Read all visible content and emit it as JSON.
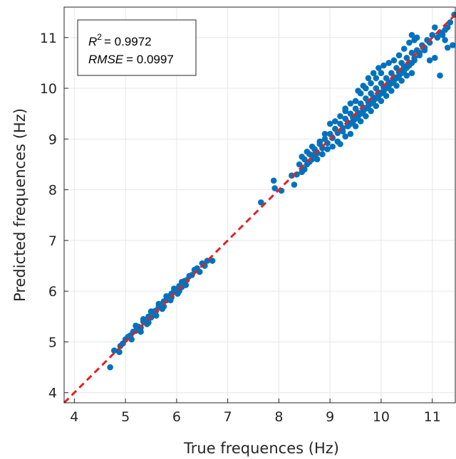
{
  "chart_data": {
    "type": "scatter",
    "xlabel": "True frequences (Hz)",
    "ylabel": "Predicted frequences (Hz)",
    "xlim": [
      3.8,
      11.45
    ],
    "ylim": [
      3.8,
      11.6
    ],
    "xticks": [
      4,
      5,
      6,
      7,
      8,
      9,
      10,
      11
    ],
    "yticks": [
      4,
      5,
      6,
      7,
      8,
      9,
      10,
      11
    ],
    "grid": true,
    "colors": {
      "points": "#0072BD",
      "reference_line": "#E32222",
      "grid": "#e6e6e6",
      "axis": "#262626"
    },
    "annotation": {
      "r2_symbol": "R",
      "r2_superscript": "2",
      "r2_value": "= 0.9972",
      "rmse_symbol": "RMSE",
      "rmse_value": "= 0.0997",
      "placement": "top-left"
    },
    "reference_line": {
      "x": [
        3.8,
        11.45
      ],
      "y": [
        3.8,
        11.45
      ],
      "style": "dashed"
    },
    "series": [
      {
        "points": [
          [
            4.7,
            4.5
          ],
          [
            4.78,
            4.83
          ],
          [
            4.88,
            4.8
          ],
          [
            4.9,
            4.92
          ],
          [
            4.95,
            4.97
          ],
          [
            5.0,
            5.05
          ],
          [
            5.05,
            5.1
          ],
          [
            5.1,
            5.13
          ],
          [
            5.15,
            5.2
          ],
          [
            5.2,
            5.22
          ],
          [
            5.25,
            5.3
          ],
          [
            5.3,
            5.28
          ],
          [
            5.35,
            5.4
          ],
          [
            5.4,
            5.42
          ],
          [
            5.45,
            5.5
          ],
          [
            5.5,
            5.48
          ],
          [
            5.55,
            5.6
          ],
          [
            5.6,
            5.62
          ],
          [
            5.65,
            5.7
          ],
          [
            5.7,
            5.68
          ],
          [
            5.75,
            5.8
          ],
          [
            5.8,
            5.82
          ],
          [
            5.85,
            5.9
          ],
          [
            5.9,
            5.88
          ],
          [
            5.95,
            6.0
          ],
          [
            6.0,
            6.02
          ],
          [
            6.05,
            6.1
          ],
          [
            6.1,
            6.08
          ],
          [
            6.15,
            6.2
          ],
          [
            6.2,
            6.22
          ],
          [
            6.3,
            6.32
          ],
          [
            6.4,
            6.45
          ],
          [
            6.5,
            6.55
          ],
          [
            6.6,
            6.6
          ],
          [
            6.7,
            6.6
          ],
          [
            6.55,
            6.5
          ],
          [
            6.45,
            6.38
          ],
          [
            6.35,
            6.42
          ],
          [
            6.25,
            6.3
          ],
          [
            5.3,
            5.2
          ],
          [
            5.45,
            5.38
          ],
          [
            5.6,
            5.52
          ],
          [
            5.75,
            5.7
          ],
          [
            5.9,
            5.95
          ],
          [
            6.05,
            6.0
          ],
          [
            5.2,
            5.32
          ],
          [
            5.35,
            5.45
          ],
          [
            5.5,
            5.6
          ],
          [
            5.65,
            5.75
          ],
          [
            5.8,
            5.9
          ],
          [
            5.95,
            6.05
          ],
          [
            6.1,
            6.18
          ],
          [
            5.12,
            5.05
          ],
          [
            5.28,
            5.25
          ],
          [
            5.42,
            5.35
          ],
          [
            5.58,
            5.55
          ],
          [
            5.72,
            5.65
          ],
          [
            5.88,
            5.82
          ],
          [
            6.02,
            5.95
          ],
          [
            6.18,
            6.12
          ],
          [
            7.65,
            7.75
          ],
          [
            7.9,
            8.18
          ],
          [
            7.92,
            8.03
          ],
          [
            8.05,
            7.98
          ],
          [
            8.25,
            8.28
          ],
          [
            8.3,
            8.1
          ],
          [
            8.35,
            8.3
          ],
          [
            8.4,
            8.5
          ],
          [
            8.45,
            8.35
          ],
          [
            8.5,
            8.6
          ],
          [
            8.55,
            8.5
          ],
          [
            8.6,
            8.7
          ],
          [
            8.65,
            8.6
          ],
          [
            8.7,
            8.8
          ],
          [
            8.75,
            8.72
          ],
          [
            8.8,
            8.9
          ],
          [
            8.85,
            8.82
          ],
          [
            8.9,
            9.0
          ],
          [
            8.95,
            8.92
          ],
          [
            9.0,
            9.1
          ],
          [
            9.05,
            9.02
          ],
          [
            9.1,
            9.2
          ],
          [
            9.15,
            9.12
          ],
          [
            9.2,
            9.3
          ],
          [
            9.25,
            9.22
          ],
          [
            9.3,
            9.4
          ],
          [
            9.35,
            9.32
          ],
          [
            9.4,
            9.5
          ],
          [
            9.45,
            9.42
          ],
          [
            9.5,
            9.6
          ],
          [
            9.55,
            9.52
          ],
          [
            9.6,
            9.7
          ],
          [
            9.65,
            9.62
          ],
          [
            9.7,
            9.8
          ],
          [
            9.75,
            9.72
          ],
          [
            9.8,
            9.9
          ],
          [
            9.85,
            9.82
          ],
          [
            9.9,
            10.0
          ],
          [
            9.95,
            9.92
          ],
          [
            10.0,
            10.1
          ],
          [
            10.05,
            10.02
          ],
          [
            10.1,
            10.2
          ],
          [
            10.15,
            10.12
          ],
          [
            10.2,
            10.3
          ],
          [
            10.25,
            10.22
          ],
          [
            10.3,
            10.4
          ],
          [
            10.35,
            10.32
          ],
          [
            10.4,
            10.5
          ],
          [
            10.45,
            10.42
          ],
          [
            10.5,
            10.6
          ],
          [
            10.55,
            10.5
          ],
          [
            10.6,
            10.7
          ],
          [
            10.65,
            10.6
          ],
          [
            10.7,
            10.75
          ],
          [
            10.75,
            10.7
          ],
          [
            10.8,
            10.85
          ],
          [
            10.85,
            10.8
          ],
          [
            10.9,
            10.95
          ],
          [
            10.95,
            10.9
          ],
          [
            11.0,
            11.05
          ],
          [
            11.05,
            11.2
          ],
          [
            11.1,
            11.0
          ],
          [
            11.15,
            11.1
          ],
          [
            11.2,
            11.05
          ],
          [
            11.25,
            11.15
          ],
          [
            11.3,
            11.2
          ],
          [
            11.35,
            11.3
          ],
          [
            11.43,
            11.45
          ],
          [
            9.3,
            9.6
          ],
          [
            9.4,
            9.7
          ],
          [
            9.5,
            9.75
          ],
          [
            9.6,
            9.9
          ],
          [
            9.7,
            10.0
          ],
          [
            9.8,
            10.1
          ],
          [
            9.9,
            10.2
          ],
          [
            10.0,
            10.3
          ],
          [
            9.2,
            8.9
          ],
          [
            9.3,
            9.05
          ],
          [
            9.4,
            9.1
          ],
          [
            9.5,
            9.25
          ],
          [
            9.6,
            9.35
          ],
          [
            9.7,
            9.45
          ],
          [
            9.8,
            9.55
          ],
          [
            9.9,
            9.65
          ],
          [
            10.0,
            9.75
          ],
          [
            10.1,
            9.85
          ],
          [
            10.2,
            9.95
          ],
          [
            10.3,
            10.05
          ],
          [
            10.4,
            10.15
          ],
          [
            10.5,
            10.25
          ],
          [
            10.6,
            10.3
          ],
          [
            10.6,
            11.05
          ],
          [
            10.65,
            10.95
          ],
          [
            10.7,
            11.0
          ],
          [
            10.55,
            10.9
          ],
          [
            10.45,
            10.78
          ],
          [
            10.35,
            10.65
          ],
          [
            10.25,
            10.55
          ],
          [
            11.15,
            10.25
          ],
          [
            10.95,
            10.55
          ],
          [
            11.05,
            10.6
          ],
          [
            11.3,
            10.8
          ],
          [
            11.25,
            10.95
          ],
          [
            11.4,
            10.85
          ],
          [
            9.0,
            9.3
          ],
          [
            8.9,
            9.1
          ],
          [
            8.8,
            8.95
          ],
          [
            8.7,
            8.7
          ],
          [
            8.6,
            8.55
          ],
          [
            8.5,
            8.4
          ],
          [
            8.45,
            8.65
          ],
          [
            8.55,
            8.75
          ],
          [
            8.65,
            8.85
          ],
          [
            8.75,
            8.6
          ],
          [
            8.85,
            8.7
          ],
          [
            8.95,
            8.8
          ],
          [
            9.05,
            8.85
          ],
          [
            9.15,
            8.95
          ],
          [
            9.25,
            9.15
          ],
          [
            9.35,
            9.25
          ],
          [
            9.45,
            9.35
          ],
          [
            9.55,
            9.45
          ],
          [
            9.65,
            9.55
          ],
          [
            9.75,
            9.65
          ],
          [
            9.85,
            9.75
          ],
          [
            9.95,
            9.85
          ],
          [
            10.05,
            9.95
          ],
          [
            10.15,
            10.05
          ],
          [
            10.25,
            10.15
          ],
          [
            10.35,
            10.25
          ],
          [
            10.45,
            10.35
          ],
          [
            10.55,
            10.45
          ],
          [
            10.65,
            10.55
          ],
          [
            10.75,
            10.65
          ],
          [
            10.85,
            10.75
          ],
          [
            9.1,
            9.35
          ],
          [
            9.2,
            9.45
          ],
          [
            9.3,
            9.55
          ],
          [
            9.4,
            9.3
          ],
          [
            9.5,
            9.4
          ],
          [
            9.6,
            9.5
          ],
          [
            9.7,
            9.6
          ],
          [
            9.8,
            9.7
          ],
          [
            9.9,
            9.8
          ],
          [
            10.0,
            9.9
          ],
          [
            10.1,
            10.0
          ],
          [
            10.2,
            10.1
          ],
          [
            10.3,
            10.2
          ],
          [
            10.4,
            10.3
          ],
          [
            10.5,
            10.4
          ],
          [
            10.6,
            10.5
          ],
          [
            9.75,
            10.2
          ],
          [
            9.85,
            10.3
          ],
          [
            9.95,
            10.4
          ],
          [
            10.05,
            10.45
          ],
          [
            10.15,
            10.5
          ],
          [
            9.65,
            10.05
          ],
          [
            9.55,
            9.95
          ]
        ]
      }
    ]
  }
}
